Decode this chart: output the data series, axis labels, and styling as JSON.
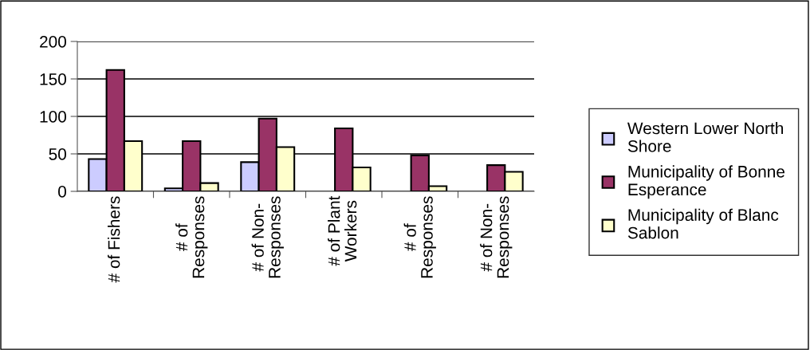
{
  "chart_data": {
    "type": "bar",
    "categories": [
      "# of Fishers",
      "# of\nResponses",
      "# of Non-\nResponses",
      "# of Plant\nWorkers",
      "# of\nResponses",
      "# of Non-\nResponses"
    ],
    "series": [
      {
        "name": "Western Lower North\nShore",
        "color": "#ccccff",
        "values": [
          43,
          4,
          39,
          null,
          null,
          null
        ]
      },
      {
        "name": "Municipality of Bonne\nEsperance",
        "color": "#993366",
        "values": [
          162,
          67,
          97,
          84,
          48,
          35
        ]
      },
      {
        "name": "Municipality of Blanc\nSablon",
        "color": "#ffffcc",
        "values": [
          67,
          11,
          59,
          32,
          7,
          26
        ]
      }
    ],
    "ylim": [
      0,
      200
    ],
    "yticks": [
      0,
      50,
      100,
      150,
      200
    ],
    "grid": "y",
    "legend": "right"
  }
}
